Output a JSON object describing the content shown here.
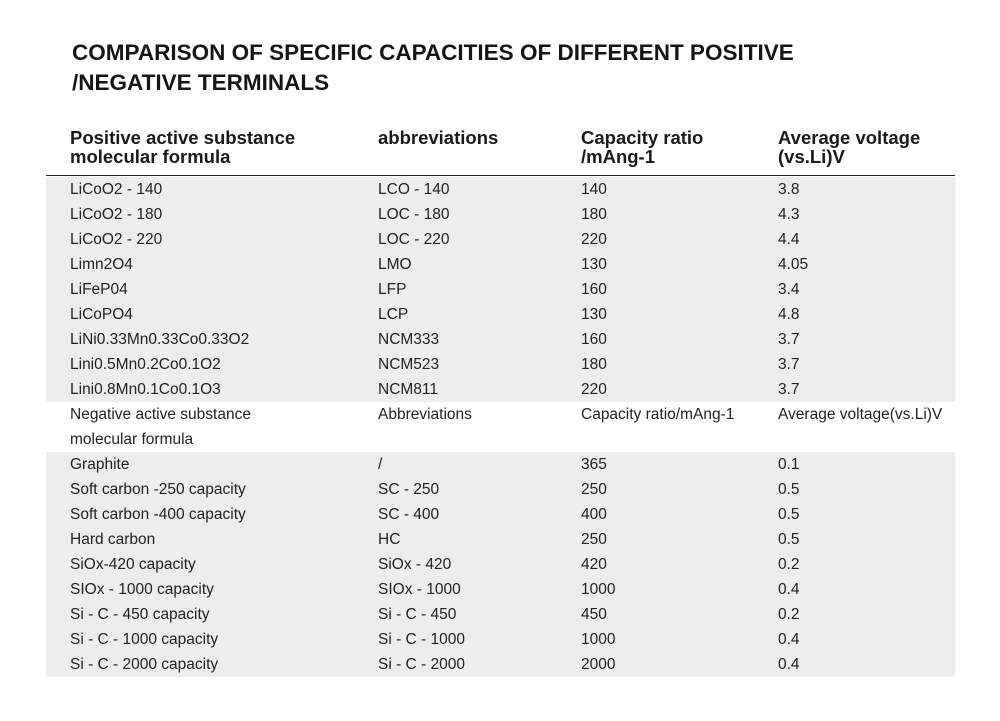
{
  "title": "COMPARISON OF SPECIFIC CAPACITIES OF DIFFERENT POSITIVE\n/NEGATIVE TERMINALS",
  "title_lines": [
    "COMPARISON OF SPECIFIC CAPACITIES OF DIFFERENT POSITIVE",
    "/NEGATIVE TERMINALS"
  ],
  "header": {
    "col1_line1": "Positive active substance",
    "col1_line2": "molecular formula",
    "col2": "abbreviations",
    "col3_line1": "Capacity ratio",
    "col3_line2": "/mAng-1",
    "col4_line1": "Average voltage",
    "col4_line2": "(vs.Li)V"
  },
  "rows": [
    {
      "c1": "LiCoO2 - 140",
      "c2": "LCO - 140",
      "c3": "140",
      "c4": "3.8"
    },
    {
      "c1": "LiCoO2 - 180",
      "c2": "LOC - 180",
      "c3": "180",
      "c4": "4.3"
    },
    {
      "c1": "LiCoO2 - 220",
      "c2": "LOC - 220",
      "c3": "220",
      "c4": "4.4"
    },
    {
      "c1": "Limn2O4",
      "c2": "LMO",
      "c3": "130",
      "c4": "4.05"
    },
    {
      "c1": "LiFeP04",
      "c2": "LFP",
      "c3": "160",
      "c4": "3.4"
    },
    {
      "c1": "LiCoPO4",
      "c2": "LCP",
      "c3": "130",
      "c4": "4.8"
    },
    {
      "c1": "LiNi0.33Mn0.33Co0.33O2",
      "c2": "NCM333",
      "c3": "160",
      "c4": "3.7"
    },
    {
      "c1": "Lini0.5Mn0.2Co0.1O2",
      "c2": "NCM523",
      "c3": "180",
      "c4": "3.7"
    },
    {
      "c1": "Lini0.8Mn0.1Co0.1O3",
      "c2": "NCM811",
      "c3": "220",
      "c4": "3.7"
    },
    {
      "c1_line1": "Negative active substance",
      "c1_line2": "molecular formula",
      "c2": "Abbreviations",
      "c3": "Capacity ratio/mAng-1",
      "c4": "Average voltage(vs.Li)V"
    },
    {
      "c1": "Graphite",
      "c2": "/",
      "c3": "365",
      "c4": "0.1"
    },
    {
      "c1": "Soft carbon -250 capacity",
      "c2": "SC - 250",
      "c3": "250",
      "c4": "0.5"
    },
    {
      "c1": "Soft carbon -400 capacity",
      "c2": "SC - 400",
      "c3": "400",
      "c4": "0.5"
    },
    {
      "c1": "Hard carbon",
      "c2": "HC",
      "c3": "250",
      "c4": "0.5"
    },
    {
      "c1": "SiOx-420 capacity",
      "c2": "SiOx - 420",
      "c3": "420",
      "c4": "0.2"
    },
    {
      "c1": "SIOx - 1000 capacity",
      "c2": "SIOx - 1000",
      "c3": "1000",
      "c4": "0.4"
    },
    {
      "c1": "Si - C - 450 capacity",
      "c2": "Si - C - 450",
      "c3": "450",
      "c4": "0.2"
    },
    {
      "c1": "Si - C - 1000 capacity",
      "c2": "Si - C - 1000",
      "c3": "1000",
      "c4": "0.4"
    },
    {
      "c1": "Si - C - 2000 capacity",
      "c2": "Si - C - 2000",
      "c3": "2000",
      "c4": "0.4"
    }
  ],
  "colors": {
    "row_shade": "#ededed",
    "text": "#222222",
    "rule": "#222222"
  }
}
